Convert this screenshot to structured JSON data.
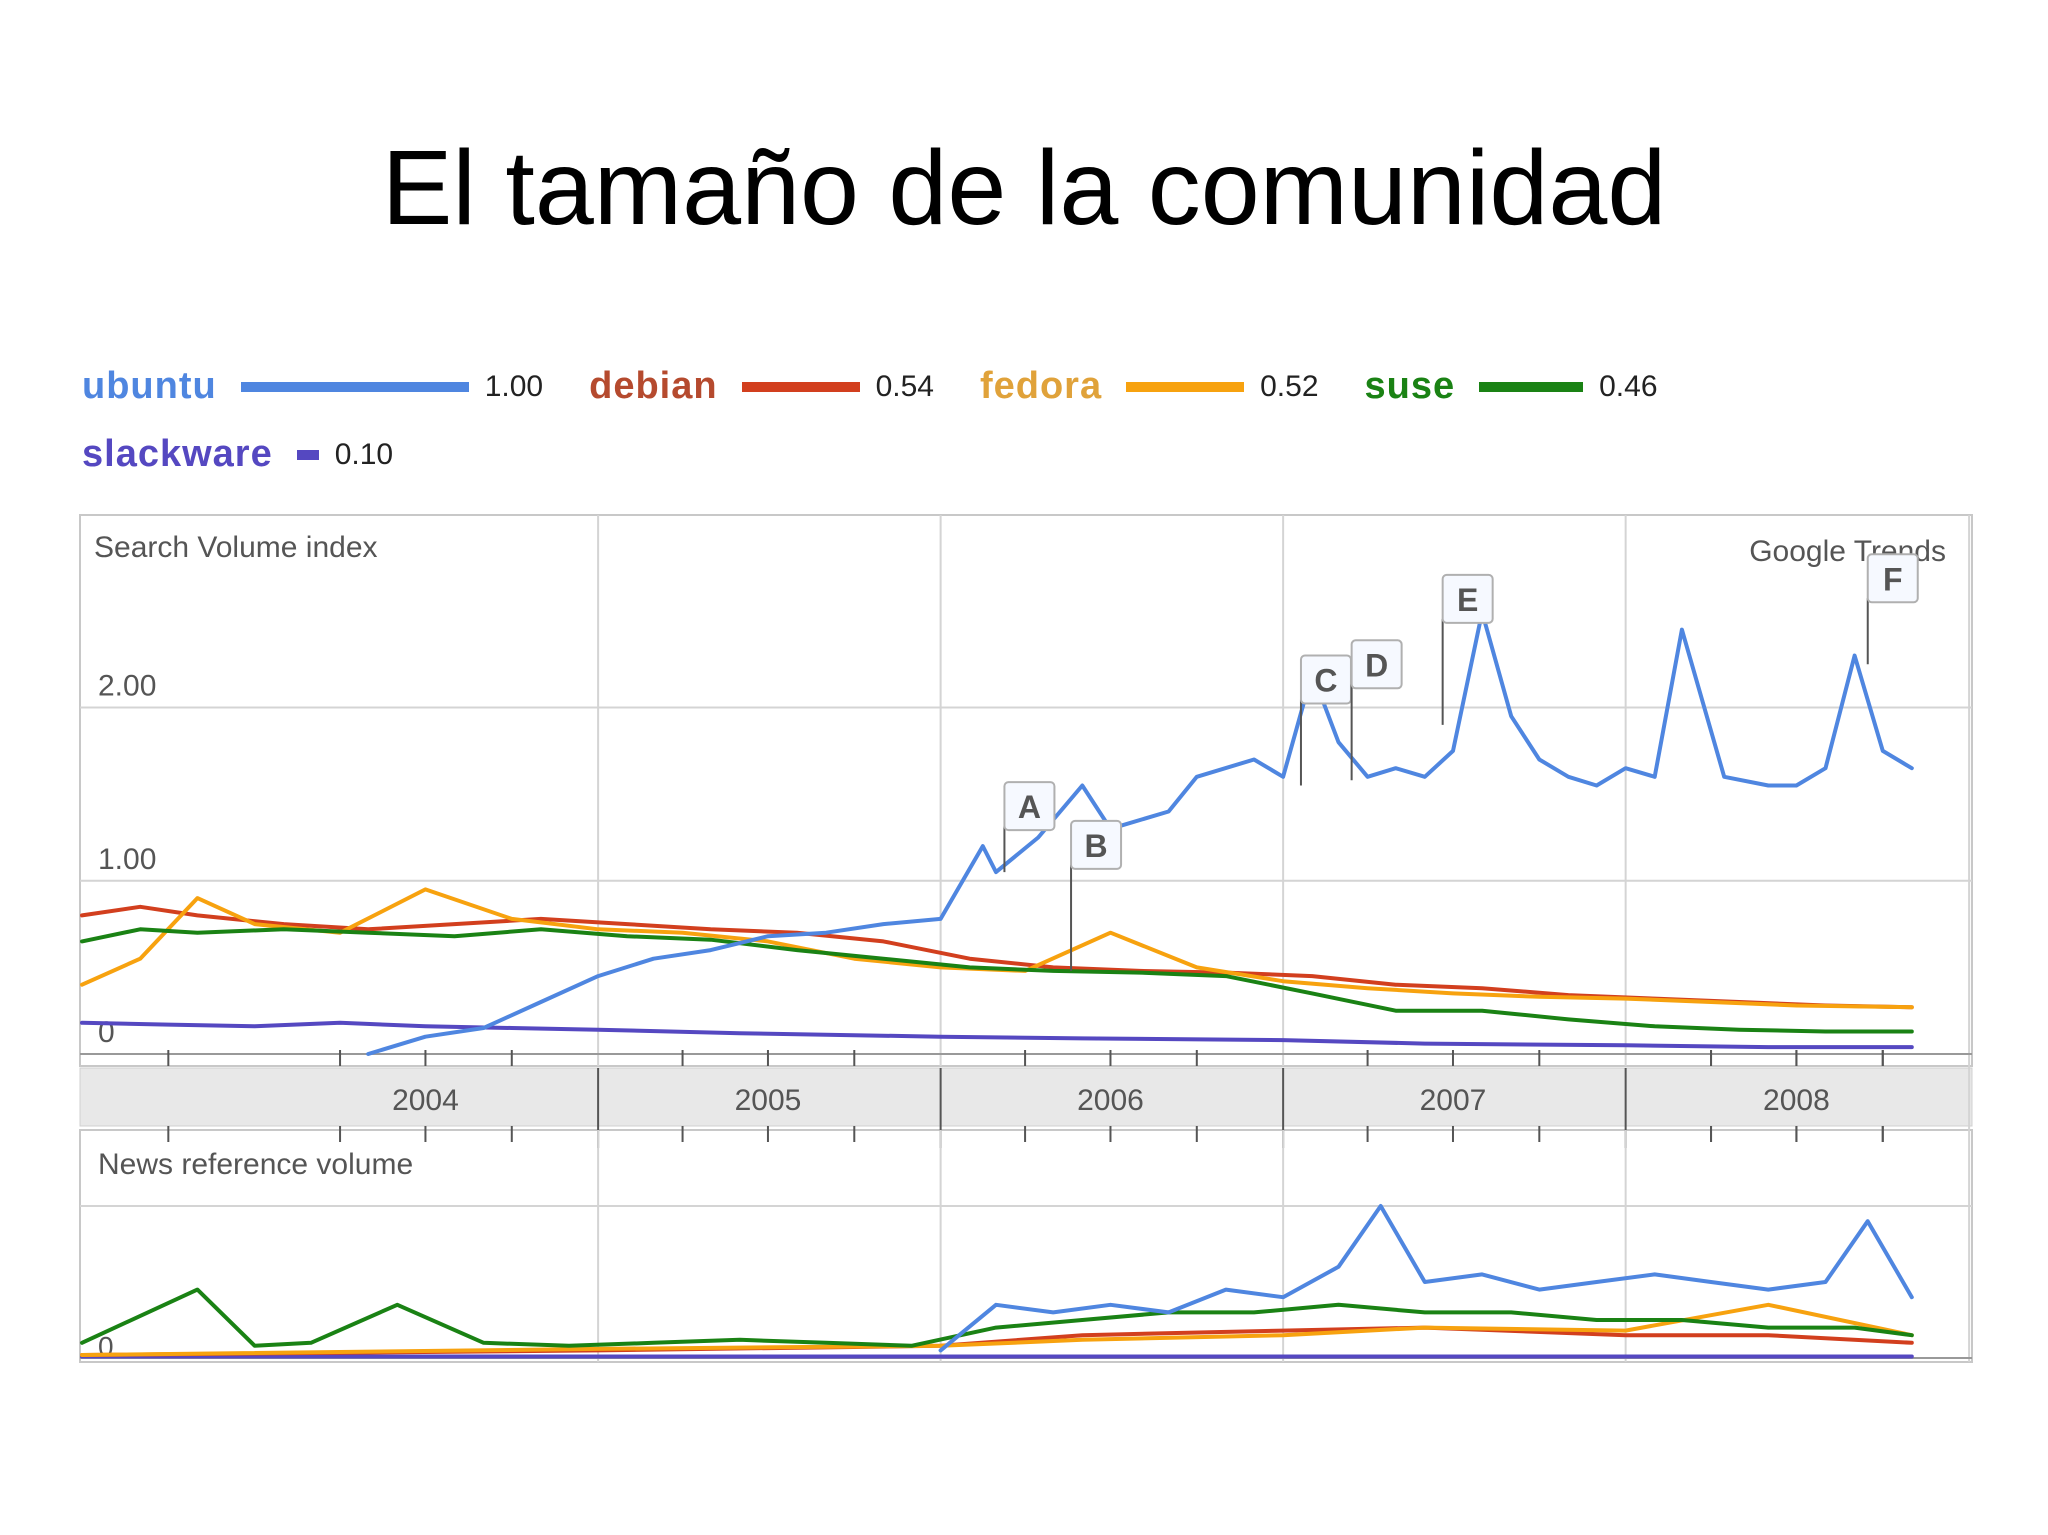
{
  "slide": {
    "title": "El tamaño de la comunidad"
  },
  "colors": {
    "ubuntu": "#4f86e0",
    "debian": "#d23f1e",
    "fedora": "#f7a20f",
    "suse": "#1a8214",
    "slackware": "#5548c1",
    "grid": "#d4d4d4",
    "axis_band": "#e8e8e8",
    "marker_border": "#b0b0b0"
  },
  "chart_data": [
    {
      "type": "line",
      "title": "Search Volume index",
      "watermark": "Google Trends",
      "x_ticks": [
        "2004",
        "2005",
        "2006",
        "2007",
        "2008"
      ],
      "xlim": [
        "2003-07-01",
        "2008-12-01"
      ],
      "ylim": [
        0,
        2.95
      ],
      "y_ticks": [
        "0",
        "1.00",
        "2.00"
      ],
      "grid": true,
      "legend_placement": "top",
      "legend": [
        {
          "name": "ubuntu",
          "value": "1.00"
        },
        {
          "name": "debian",
          "value": "0.54"
        },
        {
          "name": "fedora",
          "value": "0.52"
        },
        {
          "name": "suse",
          "value": "0.46"
        },
        {
          "name": "slackware",
          "value": "0.10"
        }
      ],
      "series": [
        {
          "name": "ubuntu",
          "x": [
            "2004-05-01",
            "2004-07-01",
            "2004-09-01",
            "2004-11-01",
            "2005-01-01",
            "2005-03-01",
            "2005-05-01",
            "2005-07-01",
            "2005-09-01",
            "2005-11-01",
            "2006-01-01",
            "2006-02-15",
            "2006-03-01",
            "2006-04-15",
            "2006-06-01",
            "2006-07-01",
            "2006-09-01",
            "2006-10-01",
            "2006-12-01",
            "2007-01-01",
            "2007-02-01",
            "2007-03-01",
            "2007-04-01",
            "2007-05-01",
            "2007-06-01",
            "2007-07-01",
            "2007-08-01",
            "2007-09-01",
            "2007-10-01",
            "2007-11-01",
            "2007-12-01",
            "2008-01-01",
            "2008-02-01",
            "2008-03-01",
            "2008-04-15",
            "2008-06-01",
            "2008-07-01",
            "2008-08-01",
            "2008-09-01",
            "2008-10-01",
            "2008-11-01"
          ],
          "values": [
            0.0,
            0.1,
            0.15,
            0.3,
            0.45,
            0.55,
            0.6,
            0.68,
            0.7,
            0.75,
            0.78,
            1.2,
            1.05,
            1.25,
            1.55,
            1.3,
            1.4,
            1.6,
            1.7,
            1.6,
            2.2,
            1.8,
            1.6,
            1.65,
            1.6,
            1.75,
            2.55,
            1.95,
            1.7,
            1.6,
            1.55,
            1.65,
            1.6,
            2.45,
            1.6,
            1.55,
            1.55,
            1.65,
            2.3,
            1.75,
            1.65
          ]
        },
        {
          "name": "debian",
          "x": [
            "2003-07-01",
            "2003-09-01",
            "2003-11-01",
            "2004-02-01",
            "2004-05-01",
            "2004-08-01",
            "2004-11-01",
            "2005-02-01",
            "2005-05-01",
            "2005-08-01",
            "2005-11-01",
            "2006-02-01",
            "2006-05-01",
            "2006-08-01",
            "2006-11-01",
            "2007-02-01",
            "2007-05-01",
            "2007-08-01",
            "2007-11-01",
            "2008-02-01",
            "2008-05-01",
            "2008-08-01",
            "2008-11-01"
          ],
          "values": [
            0.8,
            0.85,
            0.8,
            0.75,
            0.72,
            0.75,
            0.78,
            0.75,
            0.72,
            0.7,
            0.65,
            0.55,
            0.5,
            0.48,
            0.47,
            0.45,
            0.4,
            0.38,
            0.34,
            0.32,
            0.3,
            0.28,
            0.27
          ]
        },
        {
          "name": "fedora",
          "x": [
            "2003-07-01",
            "2003-09-01",
            "2003-11-01",
            "2004-01-01",
            "2004-04-01",
            "2004-07-01",
            "2004-10-01",
            "2005-01-01",
            "2005-04-01",
            "2005-07-01",
            "2005-10-01",
            "2006-01-01",
            "2006-04-01",
            "2006-07-01",
            "2006-10-01",
            "2007-01-01",
            "2007-04-01",
            "2007-07-01",
            "2007-10-01",
            "2008-01-01",
            "2008-04-01",
            "2008-07-01",
            "2008-11-01"
          ],
          "values": [
            0.4,
            0.55,
            0.9,
            0.75,
            0.7,
            0.95,
            0.78,
            0.72,
            0.7,
            0.65,
            0.55,
            0.5,
            0.48,
            0.7,
            0.5,
            0.42,
            0.38,
            0.35,
            0.33,
            0.32,
            0.3,
            0.28,
            0.27
          ]
        },
        {
          "name": "suse",
          "x": [
            "2003-07-01",
            "2003-09-01",
            "2003-11-01",
            "2004-02-01",
            "2004-05-01",
            "2004-08-01",
            "2004-11-01",
            "2005-02-01",
            "2005-05-01",
            "2005-08-01",
            "2005-11-01",
            "2006-02-01",
            "2006-05-01",
            "2006-08-01",
            "2006-11-01",
            "2007-02-01",
            "2007-05-01",
            "2007-08-01",
            "2007-11-01",
            "2008-02-01",
            "2008-05-01",
            "2008-08-01",
            "2008-11-01"
          ],
          "values": [
            0.65,
            0.72,
            0.7,
            0.72,
            0.7,
            0.68,
            0.72,
            0.68,
            0.66,
            0.6,
            0.55,
            0.5,
            0.48,
            0.47,
            0.45,
            0.35,
            0.25,
            0.25,
            0.2,
            0.16,
            0.14,
            0.13,
            0.13
          ]
        },
        {
          "name": "slackware",
          "x": [
            "2003-07-01",
            "2003-10-01",
            "2004-01-01",
            "2004-04-01",
            "2004-07-01",
            "2004-10-01",
            "2005-01-01",
            "2005-06-01",
            "2006-01-01",
            "2006-06-01",
            "2007-01-01",
            "2007-06-01",
            "2008-01-01",
            "2008-06-01",
            "2008-11-01"
          ],
          "values": [
            0.18,
            0.17,
            0.16,
            0.18,
            0.16,
            0.15,
            0.14,
            0.12,
            0.1,
            0.09,
            0.08,
            0.06,
            0.05,
            0.04,
            0.04
          ]
        }
      ],
      "annotations": [
        {
          "label": "A",
          "x": "2006-03-10",
          "y": 1.05
        },
        {
          "label": "B",
          "x": "2006-05-20",
          "y": 0.48
        },
        {
          "label": "C",
          "x": "2007-01-20",
          "y": 1.55
        },
        {
          "label": "D",
          "x": "2007-03-15",
          "y": 1.58
        },
        {
          "label": "E",
          "x": "2007-06-20",
          "y": 1.9
        },
        {
          "label": "F",
          "x": "2008-09-15",
          "y": 2.25
        }
      ]
    },
    {
      "type": "line",
      "title": "News reference volume",
      "y_ticks": [
        "0"
      ],
      "xlim": [
        "2003-07-01",
        "2008-12-01"
      ],
      "grid": true,
      "series": [
        {
          "name": "ubuntu",
          "x": [
            "2006-01-01",
            "2006-03-01",
            "2006-05-01",
            "2006-07-01",
            "2006-09-01",
            "2006-11-01",
            "2007-01-01",
            "2007-03-01",
            "2007-04-15",
            "2007-06-01",
            "2007-08-01",
            "2007-10-01",
            "2007-12-01",
            "2008-02-01",
            "2008-04-01",
            "2008-06-01",
            "2008-08-01",
            "2008-09-15",
            "2008-11-01"
          ],
          "values": [
            0.05,
            0.35,
            0.3,
            0.35,
            0.3,
            0.45,
            0.4,
            0.6,
            1.0,
            0.5,
            0.55,
            0.45,
            0.5,
            0.55,
            0.5,
            0.45,
            0.5,
            0.9,
            0.4
          ]
        },
        {
          "name": "suse",
          "x": [
            "2003-07-01",
            "2003-11-01",
            "2004-01-01",
            "2004-03-01",
            "2004-06-01",
            "2004-09-01",
            "2004-12-01",
            "2005-03-01",
            "2005-06-01",
            "2005-09-01",
            "2005-12-01",
            "2006-03-01",
            "2006-06-01",
            "2006-09-01",
            "2006-12-01",
            "2007-03-01",
            "2007-06-01",
            "2007-09-01",
            "2007-12-01",
            "2008-03-01",
            "2008-06-01",
            "2008-09-01",
            "2008-11-01"
          ],
          "values": [
            0.1,
            0.45,
            0.08,
            0.1,
            0.35,
            0.1,
            0.08,
            0.1,
            0.12,
            0.1,
            0.08,
            0.2,
            0.25,
            0.3,
            0.3,
            0.35,
            0.3,
            0.3,
            0.25,
            0.25,
            0.2,
            0.2,
            0.15
          ]
        },
        {
          "name": "debian",
          "x": [
            "2003-07-01",
            "2005-01-01",
            "2006-01-01",
            "2006-06-01",
            "2007-01-01",
            "2007-06-01",
            "2008-01-01",
            "2008-06-01",
            "2008-11-01"
          ],
          "values": [
            0.02,
            0.05,
            0.08,
            0.15,
            0.18,
            0.2,
            0.15,
            0.15,
            0.1
          ]
        },
        {
          "name": "fedora",
          "x": [
            "2003-07-01",
            "2005-01-01",
            "2006-01-01",
            "2006-06-01",
            "2007-01-01",
            "2007-06-01",
            "2008-01-01",
            "2008-06-01",
            "2008-11-01"
          ],
          "values": [
            0.02,
            0.06,
            0.08,
            0.12,
            0.15,
            0.2,
            0.18,
            0.35,
            0.15
          ]
        },
        {
          "name": "slackware",
          "x": [
            "2003-07-01",
            "2008-11-01"
          ],
          "values": [
            0.01,
            0.01
          ]
        }
      ]
    }
  ]
}
